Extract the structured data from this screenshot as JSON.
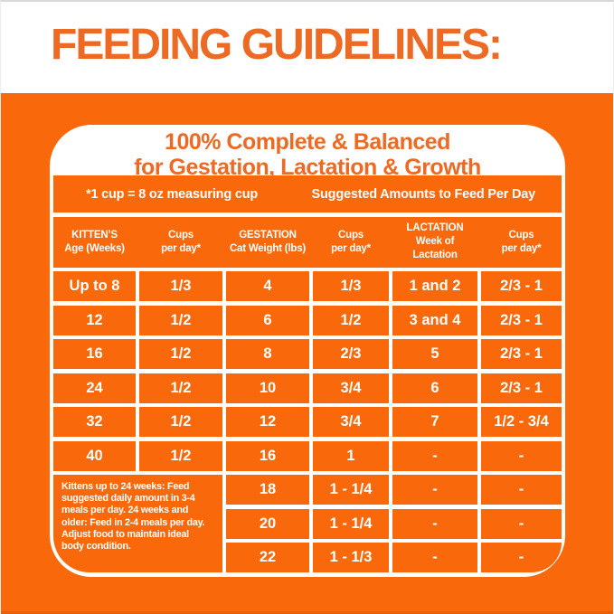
{
  "colors": {
    "panel_orange": "#F9690C",
    "text_orange": "#ED6A24",
    "white": "#FFFFFF"
  },
  "header": {
    "title": "FEEDING GUIDELINES:"
  },
  "card": {
    "title_line1": "100% Complete & Balanced",
    "title_line2": "for Gestation, Lactation & Growth",
    "cup_note": "*1 cup = 8 oz measuring cup",
    "suggested_label": "Suggested Amounts to Feed Per Day"
  },
  "table": {
    "headers": [
      [
        "KITTEN’S",
        "Age (Weeks)"
      ],
      [
        "Cups",
        "per day*"
      ],
      [
        "GESTATION",
        "Cat Weight (lbs)"
      ],
      [
        "Cups",
        "per day*"
      ],
      [
        "LACTATION",
        "Week of",
        "Lactation"
      ],
      [
        "Cups",
        "per day*"
      ]
    ],
    "rows": [
      [
        "Up to 8",
        "1/3",
        "4",
        "1/3",
        "1 and 2",
        "2/3 - 1"
      ],
      [
        "12",
        "1/2",
        "6",
        "1/2",
        "3 and 4",
        "2/3 - 1"
      ],
      [
        "16",
        "1/2",
        "8",
        "2/3",
        "5",
        "2/3 - 1"
      ],
      [
        "24",
        "1/2",
        "10",
        "3/4",
        "6",
        "2/3 - 1"
      ],
      [
        "32",
        "1/2",
        "12",
        "3/4",
        "7",
        "1/2 - 3/4"
      ],
      [
        "40",
        "1/2",
        "16",
        "1",
        "-",
        "-"
      ],
      [
        "18",
        "1 - 1/4",
        "-",
        "-"
      ],
      [
        "20",
        "1 - 1/4",
        "-",
        "-"
      ],
      [
        "22",
        "1 - 1/3",
        "-",
        "-"
      ]
    ],
    "note_lines": [
      "Kittens up to 24 weeks: Feed",
      "suggested daily amount in 3-4",
      "meals per day. 24 weeks and",
      "older: Feed in 2-4 meals per day.",
      "Adjust food to maintain ideal",
      "body condition."
    ]
  }
}
